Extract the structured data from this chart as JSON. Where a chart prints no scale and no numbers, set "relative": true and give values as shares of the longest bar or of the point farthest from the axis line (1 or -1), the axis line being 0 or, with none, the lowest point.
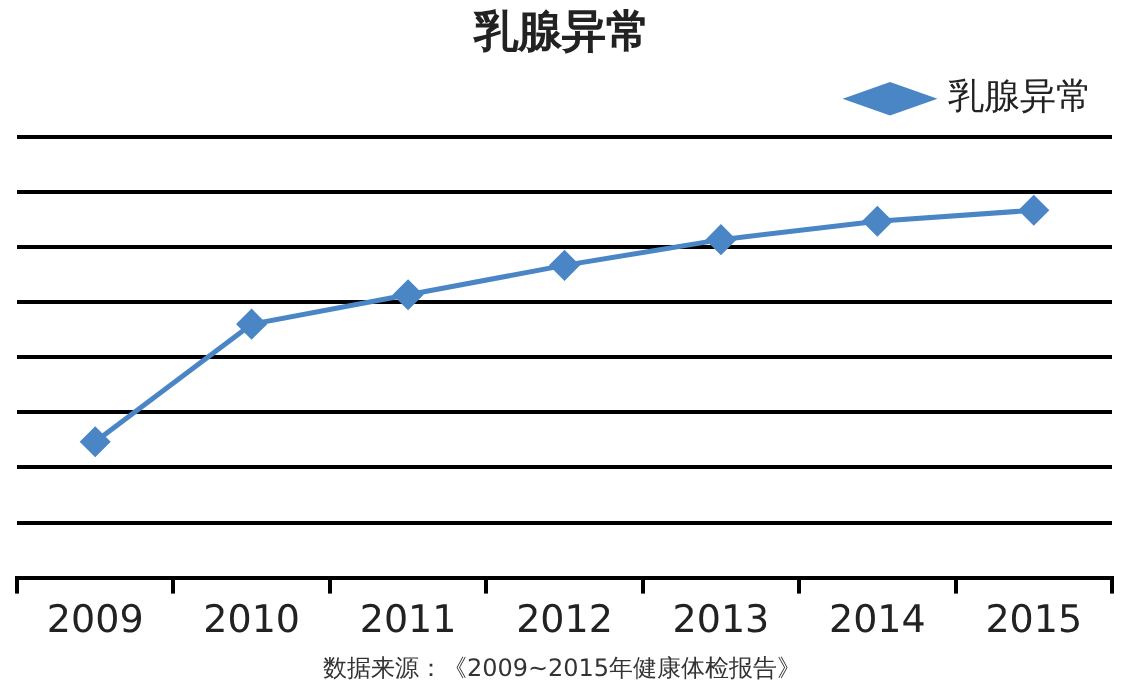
{
  "chart_data": {
    "type": "line",
    "title": "乳腺异常",
    "categories": [
      "2009",
      "2010",
      "2011",
      "2012",
      "2013",
      "2014",
      "2015"
    ],
    "series": [
      {
        "name": "乳腺异常",
        "color": "#4a86c5",
        "values": [
          0.37,
          0.69,
          0.77,
          0.85,
          0.92,
          0.97,
          1
        ]
      }
    ],
    "relative": true,
    "grid": "y",
    "legend": "top right",
    "marker": "diamond",
    "line_style": "solid",
    "annotations": [
      "数据来源：《2009~2015年健康体检报告》"
    ]
  }
}
